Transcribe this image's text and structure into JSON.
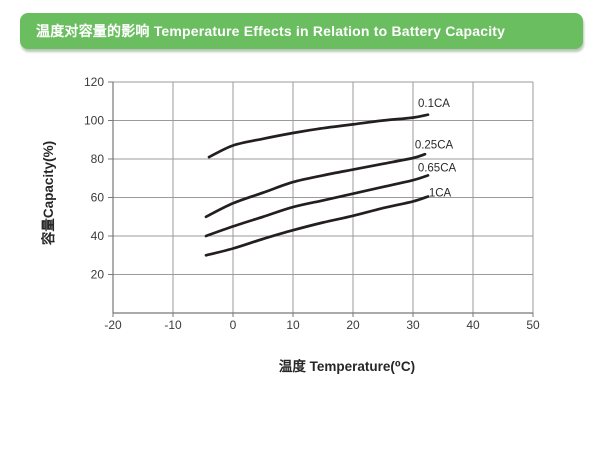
{
  "header": {
    "title": "温度对容量的影响 Temperature Effects in Relation to Battery Capacity"
  },
  "colors": {
    "banner_bg": "#6abe60",
    "banner_text": "#ffffff",
    "grid": "#9b9b9b",
    "axis": "#787878",
    "tick_label": "#3b3b3b",
    "curve": "#241f1f",
    "series_label": "#2b2b2b"
  },
  "chart_data": {
    "type": "line",
    "title": "",
    "xlabel": "温度 Temperature(⁰C)",
    "ylabel": "容量Capacity(%)",
    "xlim": [
      -20,
      50
    ],
    "ylim": [
      0,
      120
    ],
    "x_ticks": [
      -20,
      -10,
      0,
      10,
      20,
      30,
      40,
      50
    ],
    "y_ticks": [
      20,
      40,
      60,
      80,
      100,
      120
    ],
    "grid": true,
    "legend_position": "inline-end-labels",
    "series": [
      {
        "name": "0.1CA",
        "label_pos": [
          33.5,
          109
        ],
        "points": [
          [
            -4,
            81
          ],
          [
            0,
            87
          ],
          [
            5,
            90.5
          ],
          [
            10,
            93.5
          ],
          [
            15,
            96
          ],
          [
            20,
            98
          ],
          [
            25,
            100
          ],
          [
            30,
            101.5
          ],
          [
            32.5,
            103
          ]
        ]
      },
      {
        "name": "0.25CA",
        "label_pos": [
          33.5,
          87.5
        ],
        "points": [
          [
            -4.5,
            50
          ],
          [
            0,
            57
          ],
          [
            5,
            62.5
          ],
          [
            10,
            68
          ],
          [
            15,
            71.5
          ],
          [
            20,
            74.5
          ],
          [
            25,
            77.5
          ],
          [
            30,
            80.5
          ],
          [
            32,
            82.5
          ]
        ]
      },
      {
        "name": "0.65CA",
        "label_pos": [
          34,
          75.5
        ],
        "points": [
          [
            -4.5,
            40
          ],
          [
            0,
            45
          ],
          [
            5,
            50
          ],
          [
            10,
            55
          ],
          [
            15,
            58.5
          ],
          [
            20,
            62
          ],
          [
            25,
            65.5
          ],
          [
            30,
            69
          ],
          [
            32.5,
            71.5
          ]
        ]
      },
      {
        "name": "1CA",
        "label_pos": [
          34.5,
          62.5
        ],
        "points": [
          [
            -4.5,
            30
          ],
          [
            0,
            33.5
          ],
          [
            5,
            38.5
          ],
          [
            10,
            43
          ],
          [
            15,
            47
          ],
          [
            20,
            50.5
          ],
          [
            25,
            54.5
          ],
          [
            30,
            58
          ],
          [
            32.5,
            60.5
          ]
        ]
      }
    ]
  }
}
